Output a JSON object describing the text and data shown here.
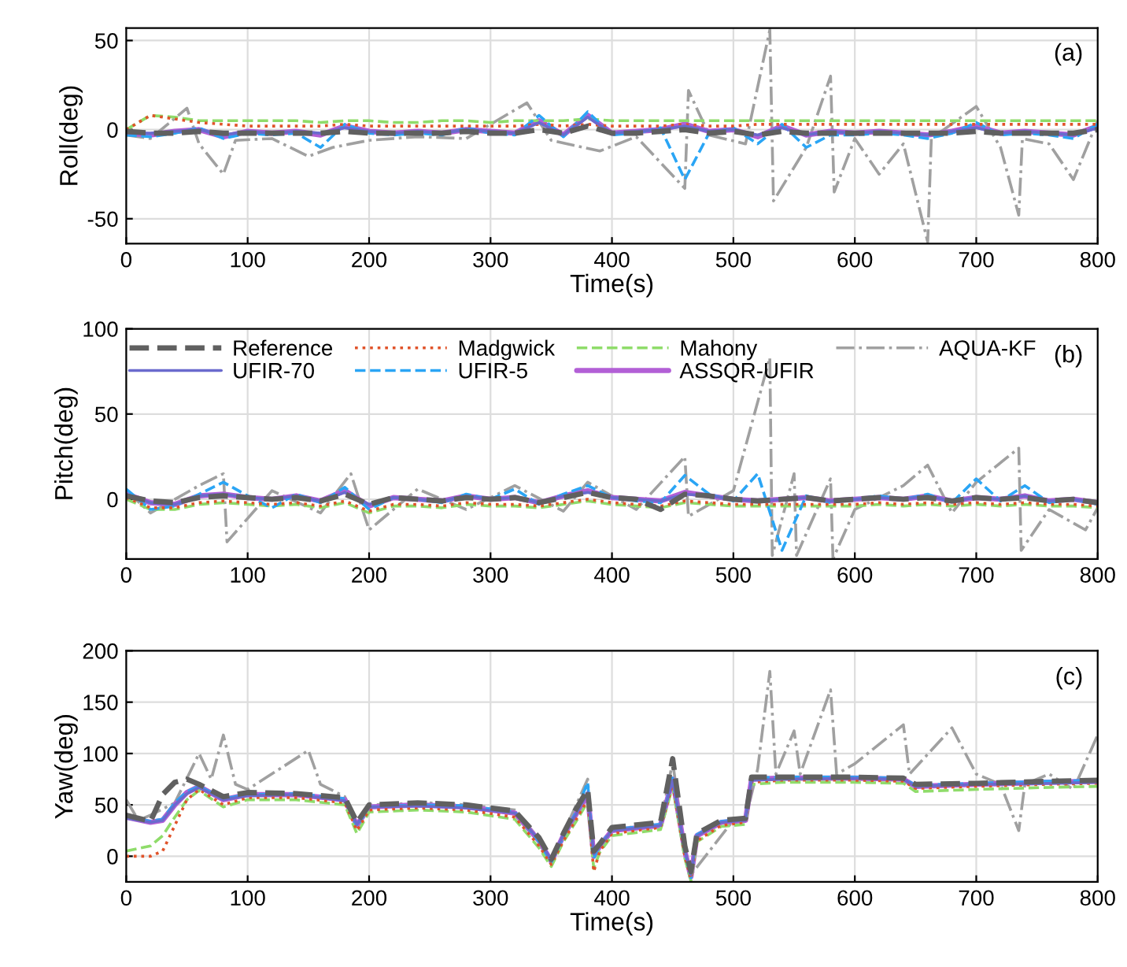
{
  "chart_data": [
    {
      "type": "line",
      "xlabel": "Time(s)",
      "ylabel": "Roll(deg)",
      "annotations": [
        "(a)"
      ],
      "xlim": [
        0,
        800
      ],
      "xticks": [
        0,
        100,
        200,
        300,
        400,
        500,
        600,
        700,
        800
      ],
      "ylim": [
        -64,
        57
      ],
      "yticks": [
        -50,
        0,
        50
      ],
      "grid": true,
      "legend": false,
      "x": [
        0,
        20,
        40,
        60,
        80,
        100,
        120,
        140,
        160,
        180,
        200,
        220,
        240,
        260,
        280,
        300,
        320,
        340,
        360,
        380,
        400,
        420,
        440,
        460,
        480,
        500,
        520,
        540,
        560,
        580,
        600,
        620,
        640,
        660,
        680,
        700,
        720,
        740,
        760,
        780,
        800
      ],
      "series": [
        {
          "color": "#606060",
          "line_style": "dashed",
          "values": [
            -1,
            -2,
            -2,
            -1,
            -2,
            -2,
            -2,
            -2,
            -2,
            -1,
            -2,
            -2,
            -2,
            -2,
            -1,
            -2,
            -2,
            0,
            -2,
            2,
            -2,
            -2,
            -1,
            0,
            -2,
            -1,
            -3,
            -1,
            -2,
            -2,
            -2,
            -2,
            -2,
            -2,
            -2,
            -1,
            -2,
            -2,
            -2,
            -2,
            0
          ]
        },
        {
          "color": "#6a6acd",
          "line_style": "solid",
          "values": [
            -2,
            -2,
            -1,
            0,
            -3,
            -1,
            -2,
            -1,
            -2,
            1,
            -1,
            -2,
            -1,
            -2,
            0,
            -1,
            -2,
            4,
            -3,
            7,
            -2,
            -1,
            0,
            2,
            -1,
            0,
            -3,
            1,
            -3,
            -1,
            -2,
            -1,
            -2,
            -3,
            -1,
            1,
            -2,
            -1,
            -2,
            -3,
            1
          ]
        },
        {
          "color": "#e0532a",
          "line_style": "dotted",
          "values": [
            0,
            8,
            6,
            4,
            3,
            2,
            2,
            2,
            2,
            3,
            2,
            2,
            2,
            2,
            2,
            2,
            2,
            3,
            2,
            3,
            2,
            2,
            2,
            3,
            2,
            2,
            3,
            3,
            3,
            3,
            3,
            3,
            3,
            3,
            3,
            3,
            3,
            3,
            3,
            3,
            3
          ]
        },
        {
          "color": "#2aa5f5",
          "line_style": "dashed",
          "values": [
            -3,
            -4,
            -2,
            1,
            -5,
            -2,
            -3,
            -2,
            -10,
            3,
            -2,
            -3,
            -2,
            -3,
            1,
            -2,
            -3,
            8,
            -4,
            10,
            -3,
            -2,
            1,
            -28,
            -2,
            1,
            -8,
            3,
            -10,
            -3,
            -3,
            -2,
            -3,
            -5,
            -2,
            4,
            -3,
            -2,
            -3,
            -5,
            3
          ]
        },
        {
          "color": "#8fdc6a",
          "line_style": "dashed",
          "values": [
            0,
            8,
            7,
            5,
            5,
            5,
            5,
            5,
            4,
            5,
            5,
            4,
            4,
            5,
            5,
            4,
            5,
            5,
            5,
            6,
            5,
            5,
            5,
            5,
            5,
            5,
            5,
            5,
            5,
            5,
            5,
            5,
            5,
            5,
            5,
            5,
            5,
            5,
            5,
            5,
            5
          ]
        },
        {
          "color": "#b25fd6",
          "line_style": "solid",
          "values": [
            -2,
            -3,
            -1,
            0,
            -4,
            -1,
            -2,
            -1,
            -3,
            2,
            -1,
            -2,
            -1,
            -2,
            0,
            -1,
            -2,
            5,
            -3,
            8,
            -2,
            -1,
            0,
            3,
            -1,
            0,
            -4,
            2,
            -3,
            -1,
            -2,
            -1,
            -2,
            -3,
            -1,
            2,
            -2,
            -1,
            -2,
            -3,
            2
          ]
        },
        {
          "color": "#a0a0a0",
          "line_style": "dashdot",
          "x": [
            0,
            20,
            50,
            60,
            80,
            90,
            120,
            150,
            170,
            200,
            240,
            280,
            330,
            350,
            390,
            420,
            460,
            463,
            480,
            510,
            530,
            533,
            560,
            580,
            583,
            600,
            620,
            640,
            660,
            663,
            700,
            720,
            735,
            738,
            760,
            780,
            800
          ],
          "values": [
            -3,
            -5,
            12,
            -8,
            -25,
            -6,
            -5,
            -15,
            -10,
            -6,
            -4,
            -5,
            15,
            -6,
            -12,
            -4,
            -33,
            22,
            -3,
            -8,
            56,
            -40,
            -10,
            30,
            -35,
            -5,
            -25,
            -8,
            -63,
            -5,
            13,
            -10,
            -48,
            -5,
            -8,
            -28,
            5
          ]
        }
      ]
    },
    {
      "type": "line",
      "ylabel": "Pitch(deg)",
      "annotations": [
        "(b)"
      ],
      "xlim": [
        0,
        800
      ],
      "xticks": [
        0,
        100,
        200,
        300,
        400,
        500,
        600,
        700,
        800
      ],
      "ylim": [
        -35,
        100
      ],
      "yticks": [
        0,
        50,
        100
      ],
      "grid": true,
      "legend": "top",
      "x": [
        0,
        20,
        40,
        60,
        80,
        100,
        120,
        140,
        160,
        180,
        200,
        220,
        240,
        260,
        280,
        300,
        320,
        340,
        360,
        380,
        400,
        420,
        440,
        460,
        480,
        500,
        520,
        540,
        560,
        580,
        600,
        620,
        640,
        660,
        680,
        700,
        720,
        740,
        760,
        780,
        800
      ],
      "series": [
        {
          "name": "Reference",
          "color": "#606060",
          "line_style": "dashed",
          "values": [
            2,
            -1,
            -2,
            1,
            2,
            1,
            0,
            1,
            -1,
            3,
            -3,
            1,
            0,
            -1,
            1,
            0,
            1,
            -2,
            1,
            4,
            1,
            0,
            -6,
            3,
            2,
            0,
            -1,
            0,
            1,
            -1,
            0,
            1,
            0,
            1,
            -1,
            1,
            0,
            1,
            -1,
            0,
            -2
          ]
        },
        {
          "name": "UFIR-70",
          "color": "#6a6acd",
          "line_style": "solid",
          "values": [
            3,
            -2,
            -3,
            2,
            3,
            1,
            0,
            2,
            -1,
            4,
            -3,
            1,
            0,
            -1,
            2,
            0,
            1,
            -2,
            2,
            4,
            1,
            0,
            -1,
            3,
            2,
            0,
            -1,
            0,
            1,
            -1,
            0,
            1,
            0,
            2,
            -1,
            1,
            0,
            2,
            -1,
            0,
            -2
          ]
        },
        {
          "name": "Madgwick",
          "color": "#e0532a",
          "line_style": "dotted",
          "values": [
            1,
            -5,
            -5,
            -2,
            -1,
            -2,
            -3,
            -2,
            -4,
            -1,
            -7,
            -3,
            -3,
            -4,
            -2,
            -3,
            -3,
            -4,
            -2,
            0,
            -2,
            -3,
            -4,
            -1,
            -2,
            -3,
            -3,
            -3,
            -3,
            -3,
            -3,
            -2,
            -3,
            -2,
            -3,
            -2,
            -3,
            -2,
            -3,
            -3,
            -4
          ]
        },
        {
          "name": "UFIR-5",
          "color": "#2aa5f5",
          "line_style": "dashed",
          "values": [
            6,
            -6,
            -4,
            3,
            10,
            2,
            -5,
            3,
            -2,
            7,
            -6,
            1,
            0,
            -2,
            3,
            0,
            6,
            -3,
            3,
            8,
            1,
            -1,
            -2,
            14,
            3,
            -1,
            15,
            -30,
            2,
            -2,
            0,
            2,
            0,
            3,
            -2,
            12,
            -1,
            8,
            -2,
            0,
            -3
          ]
        },
        {
          "name": "Mahony",
          "color": "#8fdc6a",
          "line_style": "dashed",
          "values": [
            0,
            -6,
            -6,
            -3,
            -2,
            -3,
            -4,
            -3,
            -5,
            -2,
            -8,
            -4,
            -4,
            -5,
            -3,
            -4,
            -4,
            -5,
            -3,
            -1,
            -3,
            -4,
            -5,
            -2,
            -3,
            -4,
            -4,
            -4,
            -4,
            -4,
            -4,
            -3,
            -4,
            -3,
            -4,
            -3,
            -4,
            -3,
            -4,
            -4,
            -5
          ]
        },
        {
          "name": "ASSQR-UFIR",
          "color": "#b25fd6",
          "line_style": "solid",
          "values": [
            3,
            -2,
            -3,
            2,
            3,
            1,
            0,
            2,
            -1,
            5,
            -4,
            1,
            0,
            -1,
            2,
            0,
            1,
            -2,
            2,
            5,
            1,
            0,
            -1,
            4,
            2,
            0,
            -1,
            0,
            1,
            -1,
            0,
            1,
            0,
            2,
            -1,
            1,
            0,
            2,
            -1,
            0,
            -2
          ]
        },
        {
          "name": "AQUA-KF",
          "color": "#a0a0a0",
          "line_style": "dashdot",
          "x": [
            0,
            20,
            60,
            80,
            83,
            120,
            160,
            185,
            200,
            240,
            280,
            320,
            360,
            380,
            420,
            460,
            463,
            500,
            530,
            532,
            550,
            552,
            580,
            582,
            600,
            640,
            660,
            680,
            700,
            735,
            737,
            760,
            790,
            800
          ],
          "values": [
            5,
            -8,
            8,
            15,
            -25,
            5,
            -8,
            15,
            -18,
            6,
            -6,
            8,
            -7,
            10,
            -6,
            25,
            -10,
            5,
            83,
            -33,
            15,
            -33,
            12,
            -35,
            -6,
            8,
            20,
            -8,
            10,
            30,
            -30,
            -6,
            -18,
            -5
          ]
        }
      ]
    },
    {
      "type": "line",
      "xlabel": "Time(s)",
      "ylabel": "Yaw(deg)",
      "annotations": [
        "(c)"
      ],
      "xlim": [
        0,
        800
      ],
      "xticks": [
        0,
        100,
        200,
        300,
        400,
        500,
        600,
        700,
        800
      ],
      "ylim": [
        -25,
        200
      ],
      "yticks": [
        0,
        50,
        100,
        150,
        200
      ],
      "grid": true,
      "legend": false,
      "x": [
        0,
        20,
        30,
        40,
        50,
        60,
        80,
        100,
        140,
        180,
        190,
        200,
        240,
        280,
        320,
        340,
        350,
        360,
        370,
        380,
        385,
        390,
        400,
        440,
        450,
        460,
        465,
        470,
        490,
        510,
        515,
        540,
        600,
        640,
        650,
        700,
        760,
        800
      ],
      "series": [
        {
          "color": "#606060",
          "line_style": "dashed",
          "values": [
            40,
            34,
            60,
            72,
            75,
            70,
            58,
            62,
            61,
            57,
            33,
            50,
            52,
            50,
            44,
            18,
            -3,
            22,
            45,
            65,
            5,
            12,
            28,
            33,
            95,
            10,
            -15,
            22,
            35,
            37,
            77,
            77,
            77,
            76,
            70,
            71,
            73,
            74
          ]
        },
        {
          "color": "#6a6acd",
          "line_style": "solid",
          "values": [
            37,
            33,
            35,
            50,
            61,
            67,
            55,
            59,
            60,
            54,
            31,
            48,
            49,
            47,
            42,
            16,
            -4,
            21,
            40,
            62,
            2,
            10,
            25,
            30,
            74,
            6,
            -18,
            20,
            33,
            35,
            74,
            75,
            76,
            75,
            68,
            70,
            71,
            72
          ]
        },
        {
          "color": "#e0532a",
          "line_style": "dotted",
          "values": [
            0,
            0,
            5,
            30,
            55,
            65,
            50,
            57,
            57,
            52,
            25,
            45,
            47,
            45,
            38,
            10,
            -8,
            15,
            35,
            55,
            -15,
            5,
            22,
            28,
            70,
            0,
            -22,
            15,
            30,
            33,
            72,
            74,
            74,
            73,
            66,
            68,
            70,
            71
          ]
        },
        {
          "color": "#2aa5f5",
          "line_style": "dashed",
          "values": [
            39,
            34,
            36,
            52,
            63,
            68,
            56,
            60,
            61,
            56,
            29,
            48,
            50,
            49,
            43,
            14,
            -6,
            19,
            42,
            72,
            -2,
            11,
            26,
            31,
            76,
            4,
            -21,
            21,
            34,
            36,
            76,
            77,
            77,
            76,
            69,
            71,
            73,
            74
          ]
        },
        {
          "color": "#8fdc6a",
          "line_style": "dashed",
          "values": [
            5,
            10,
            20,
            38,
            55,
            64,
            48,
            55,
            55,
            50,
            22,
            43,
            45,
            43,
            36,
            8,
            -10,
            14,
            33,
            53,
            -12,
            4,
            20,
            26,
            68,
            -2,
            -24,
            14,
            29,
            31,
            70,
            72,
            72,
            71,
            63,
            65,
            67,
            68
          ]
        },
        {
          "color": "#b25fd6",
          "line_style": "solid",
          "values": [
            38,
            33,
            35,
            50,
            62,
            68,
            55,
            60,
            60,
            55,
            30,
            48,
            50,
            48,
            42,
            15,
            -5,
            20,
            40,
            60,
            0,
            10,
            25,
            30,
            75,
            5,
            -20,
            20,
            33,
            35,
            75,
            76,
            76,
            75,
            68,
            70,
            72,
            73
          ]
        },
        {
          "color": "#a0a0a0",
          "line_style": "dashdot",
          "x": [
            0,
            10,
            20,
            40,
            60,
            70,
            80,
            90,
            100,
            150,
            160,
            180,
            190,
            200,
            250,
            280,
            320,
            340,
            350,
            360,
            380,
            385,
            400,
            440,
            450,
            460,
            465,
            500,
            510,
            520,
            530,
            535,
            550,
            555,
            580,
            585,
            600,
            640,
            645,
            680,
            700,
            720,
            735,
            740,
            760,
            780,
            800
          ],
          "values": [
            55,
            35,
            40,
            52,
            100,
            75,
            118,
            70,
            65,
            103,
            70,
            58,
            32,
            50,
            52,
            50,
            45,
            17,
            -3,
            22,
            75,
            0,
            26,
            32,
            92,
            5,
            -18,
            35,
            36,
            85,
            180,
            80,
            122,
            80,
            162,
            80,
            90,
            128,
            80,
            125,
            80,
            70,
            25,
            70,
            80,
            65,
            118
          ]
        }
      ]
    }
  ]
}
